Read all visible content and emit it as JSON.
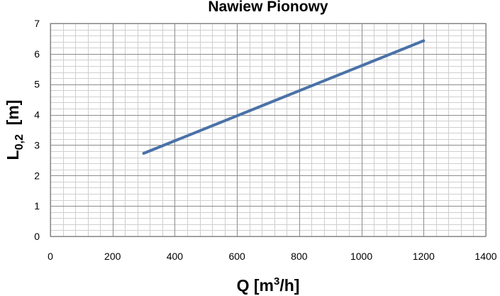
{
  "chart_data": {
    "type": "line",
    "title": "Nawiew Pionowy",
    "xlabel": {
      "main": "Q [m",
      "sup": "3",
      "tail": "/h]"
    },
    "ylabel": {
      "main": "L",
      "sub": "0,2",
      "tail": "  [m]"
    },
    "xlim": [
      0,
      1400
    ],
    "ylim": [
      0,
      7
    ],
    "x_ticks": [
      "0",
      "200",
      "400",
      "600",
      "800",
      "1000",
      "1200",
      "1400"
    ],
    "y_ticks": [
      "0",
      "1",
      "2",
      "3",
      "4",
      "5",
      "6",
      "7"
    ],
    "grid": true,
    "series": [
      {
        "color": "#4a72a8",
        "x": [
          300,
          1200
        ],
        "y": [
          2.73,
          6.43
        ]
      }
    ]
  }
}
